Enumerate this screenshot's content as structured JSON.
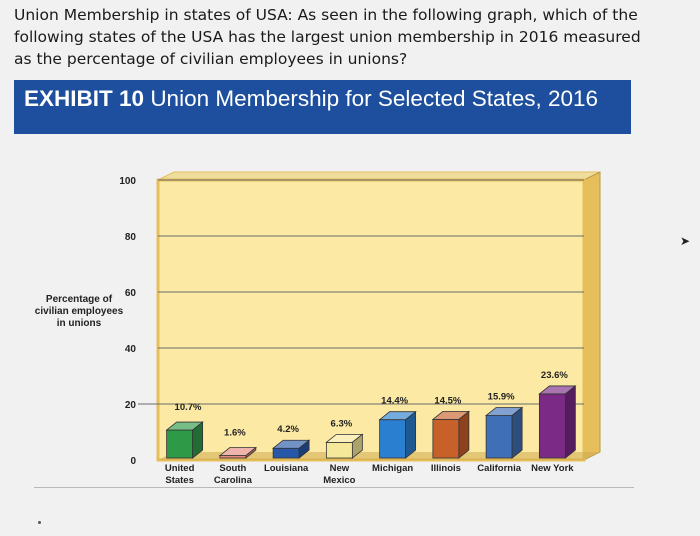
{
  "question": {
    "text": "Union Membership in states of USA: As seen in the following graph, which of the following states of the USA has the largest union membership in 2016 measured as the percentage of civilian employees in unions?"
  },
  "exhibit": {
    "label": "EXHIBIT 10",
    "title": "Union Membership for Selected States, 2016"
  },
  "chart_data": {
    "type": "bar",
    "title": "Union Membership for Selected States, 2016",
    "ylabel": "Percentage of civilian employees in unions",
    "xlabel": "",
    "ylim": [
      0,
      100
    ],
    "yticks": [
      0,
      20,
      40,
      60,
      80,
      100
    ],
    "grid": true,
    "categories": [
      {
        "name": "United States",
        "lines": [
          "United",
          "States"
        ]
      },
      {
        "name": "South Carolina",
        "lines": [
          "South",
          "Carolina"
        ]
      },
      {
        "name": "Louisiana",
        "lines": [
          "Louisiana"
        ]
      },
      {
        "name": "New Mexico",
        "lines": [
          "New",
          "Mexico"
        ]
      },
      {
        "name": "Michigan",
        "lines": [
          "Michigan"
        ]
      },
      {
        "name": "Illinois",
        "lines": [
          "Illinois"
        ]
      },
      {
        "name": "California",
        "lines": [
          "California"
        ]
      },
      {
        "name": "New York",
        "lines": [
          "New York"
        ]
      }
    ],
    "values": [
      10.7,
      1.6,
      4.2,
      6.3,
      14.4,
      14.5,
      15.9,
      23.6
    ],
    "value_labels": [
      "10.7%",
      "1.6%",
      "4.2%",
      "6.3%",
      "14.4%",
      "14.5%",
      "15.9%",
      "23.6%"
    ],
    "colors": [
      "#2e9a47",
      "#e58a7d",
      "#2757a8",
      "#f6e89a",
      "#2b7fd0",
      "#c8602a",
      "#3f6fb6",
      "#7b2a86"
    ]
  },
  "colors": {
    "header": "#1d4f9e",
    "chart_fill": "#fbe9a4",
    "chart_frame": "#e7bf5a"
  }
}
